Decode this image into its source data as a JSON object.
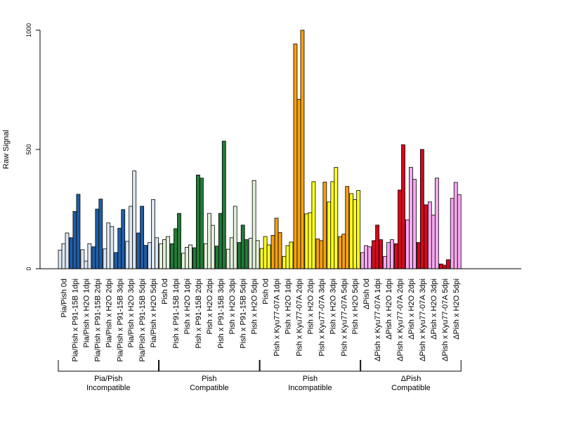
{
  "chart_data": {
    "type": "bar",
    "ylabel": "Raw Signal",
    "ylim": [
      0,
      1000
    ],
    "yticks": [
      0,
      500,
      1000
    ],
    "grid": false,
    "categories": [
      "Pia/Pish 0d",
      "Pia/Pish x P91-15B 1dpi",
      "Pia/Pish x H2O 1dpi",
      "Pia/Pish x P91-15B 2dpi",
      "Pia/Pish x H2O 2dpi",
      "Pia/Pish x P91-15B 3dpi",
      "Pia/Pish x H2O 3dpi",
      "Pia/Pish x P91-15B 5dpi",
      "Pia/Pish x H2O 5dpi",
      "Pish 0d",
      "Pish x P91-15B 1dpi",
      "Pish x H2O 1dpi",
      "Pish x P91-15B 2dpi",
      "Pish x H2O 2dpi",
      "Pish x P91-15B 3dpi",
      "Pish x H2O 3dpi",
      "Pish x P91-15B 5dpi",
      "Pish x H2O 5dpi",
      "Pish 0d",
      "Pish x Kyu77-07A 1dpi",
      "Pish x H2O 1dpi",
      "Pish x Kyu77-07A 2dpi",
      "Pish x H2O 2dpi",
      "Pish x Kyu77-07A 3dpi",
      "Pish x H2O 3dpi",
      "Pish x Kyu77-07A 5dpi",
      "Pish x H2O 5dpi",
      "ΔPish 0d",
      "ΔPish x Kyu77-07A 1dpi",
      "ΔPish x H2O 1dpi",
      "ΔPish x Kyu77-07A 2dpi",
      "ΔPish x H2O 2dpi",
      "ΔPish x Kyu77-07A 3dpi",
      "ΔPish x H2O 3dpi",
      "ΔPish x Kyu77-07A 5dpi",
      "ΔPish x H2O 5dpi"
    ],
    "values": [
      [
        78,
        105,
        150
      ],
      [
        130,
        240,
        312
      ],
      [
        80,
        32,
        105
      ],
      [
        92,
        250,
        292
      ],
      [
        83,
        192,
        177
      ],
      [
        68,
        170,
        248
      ],
      [
        115,
        262,
        410
      ],
      [
        150,
        262,
        98
      ],
      [
        110,
        290,
        130
      ],
      [
        105,
        122,
        135
      ],
      [
        105,
        168,
        232
      ],
      [
        65,
        90,
        100
      ],
      [
        88,
        393,
        380
      ],
      [
        105,
        232,
        182
      ],
      [
        95,
        232,
        535
      ],
      [
        82,
        130,
        262
      ],
      [
        110,
        183,
        122
      ],
      [
        128,
        370,
        118
      ],
      [
        85,
        135,
        100
      ],
      [
        140,
        212,
        152
      ],
      [
        52,
        97,
        112
      ],
      [
        942,
        710,
        1000
      ],
      [
        230,
        235,
        365
      ],
      [
        125,
        118,
        363
      ],
      [
        280,
        365,
        425
      ],
      [
        135,
        145,
        345
      ],
      [
        315,
        290,
        328
      ],
      [
        68,
        97,
        92
      ],
      [
        118,
        183,
        122
      ],
      [
        52,
        110,
        122
      ],
      [
        105,
        330,
        520
      ],
      [
        205,
        425,
        375
      ],
      [
        110,
        500,
        268
      ],
      [
        280,
        225,
        380
      ],
      [
        20,
        15,
        38
      ],
      [
        295,
        362,
        310
      ]
    ],
    "bar_colors": [
      "#dbe6f2",
      "#1f5fa8",
      "#dbe6f2",
      "#1f5fa8",
      "#dbe6f2",
      "#1f5fa8",
      "#dbe6f2",
      "#1f5fa8",
      "#dbe6f2",
      "#e2f0da",
      "#237a37",
      "#e2f0da",
      "#237a37",
      "#e2f0da",
      "#237a37",
      "#e2f0da",
      "#237a37",
      "#e2f0da",
      "#ffff22",
      "#f5a010",
      "#ffff22",
      "#f5a010",
      "#ffff22",
      "#f5a010",
      "#ffff22",
      "#f5a010",
      "#ffff22",
      "#f7a8ef",
      "#d20a1e",
      "#f7a8ef",
      "#d20a1e",
      "#f7a8ef",
      "#d20a1e",
      "#f7a8ef",
      "#d20a1e",
      "#f7a8ef"
    ],
    "groups": [
      {
        "line1": "Pia/Pish",
        "line2": "Incompatible",
        "start": 0,
        "end": 8
      },
      {
        "line1": "Pish",
        "line2": "Compatible",
        "start": 9,
        "end": 17
      },
      {
        "line1": "Pish",
        "line2": "Incompatible",
        "start": 18,
        "end": 26
      },
      {
        "line1": "ΔPish",
        "line2": "Compatible",
        "start": 27,
        "end": 35
      }
    ]
  }
}
